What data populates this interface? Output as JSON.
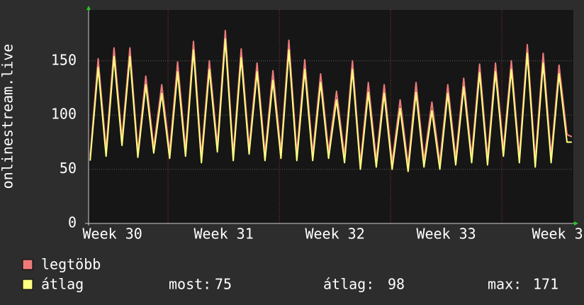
{
  "chart_data": {
    "type": "line",
    "y_label": "onlinestream.live",
    "x": [
      2.1,
      2.6,
      3.1,
      3.6,
      4.1,
      4.6,
      5.1,
      5.6,
      6.1,
      6.6,
      7.1,
      7.6,
      8.1,
      8.6,
      9.1,
      9.6,
      10.1,
      10.6,
      11.1,
      11.6,
      12.1,
      12.6,
      13.1,
      13.6,
      14.1,
      14.6,
      15.1,
      15.6,
      16.1,
      16.6,
      17.1,
      17.6,
      18.1,
      18.6,
      19.1,
      19.6,
      20.1,
      20.6,
      21.1,
      21.6,
      22.1,
      22.6,
      23.1,
      23.6,
      24.1,
      24.6,
      25.1,
      25.6,
      26.1,
      26.6,
      27.1,
      27.6,
      28.1,
      28.6,
      29.1,
      29.6,
      30.1,
      30.6,
      31.1,
      31.6,
      32.1,
      32.4
    ],
    "series": [
      {
        "name": "legtöbb",
        "color": "#ee7a7a",
        "values": [
          62,
          152,
          68,
          162,
          78,
          162,
          66,
          136,
          70,
          128,
          66,
          149,
          68,
          168,
          62,
          150,
          72,
          178,
          64,
          161,
          70,
          148,
          64,
          141,
          66,
          169,
          64,
          151,
          64,
          138,
          66,
          122,
          62,
          150,
          55,
          130,
          58,
          128,
          56,
          114,
          54,
          130,
          58,
          112,
          56,
          128,
          60,
          134,
          62,
          147,
          60,
          148,
          68,
          150,
          62,
          165,
          58,
          157,
          62,
          146,
          82,
          80
        ]
      },
      {
        "name": "átlag",
        "color": "#ffff80",
        "values": [
          58,
          144,
          62,
          154,
          72,
          154,
          61,
          128,
          65,
          120,
          60,
          140,
          62,
          160,
          56,
          142,
          66,
          170,
          58,
          153,
          64,
          140,
          58,
          132,
          60,
          160,
          58,
          142,
          58,
          130,
          60,
          114,
          56,
          142,
          50,
          121,
          52,
          120,
          50,
          106,
          48,
          121,
          52,
          104,
          50,
          120,
          54,
          126,
          56,
          139,
          54,
          140,
          62,
          142,
          56,
          157,
          52,
          148,
          56,
          138,
          75,
          75
        ]
      }
    ],
    "xlim": [
      2,
      32.5
    ],
    "xticks": [
      {
        "value": 3.5,
        "label": "Week 30"
      },
      {
        "value": 10.5,
        "label": "Week 31"
      },
      {
        "value": 17.5,
        "label": "Week 32"
      },
      {
        "value": 24.5,
        "label": "Week 33"
      },
      {
        "value": 31.5,
        "label": "Week 3"
      }
    ],
    "xgrid": [
      7,
      14,
      21,
      28
    ],
    "ylim": [
      0,
      197
    ],
    "yticks": [
      0,
      50,
      100,
      150
    ],
    "grid": true,
    "stats": [
      {
        "label": "most:",
        "value": 75
      },
      {
        "label": "átlag:",
        "value": 98
      },
      {
        "label": "max:",
        "value": 171
      }
    ]
  }
}
